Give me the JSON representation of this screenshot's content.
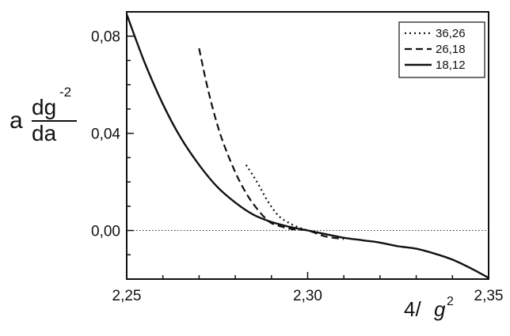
{
  "chart_data": {
    "type": "line",
    "title": "",
    "xlabel": "4/g^2",
    "xlabel_parts": {
      "lead": "4/",
      "var": "g",
      "exp": "2"
    },
    "ylabel_parts": {
      "prefix": "a",
      "numerator": "dg",
      "numerator_exp": "-2",
      "denominator": "da"
    },
    "xlim": [
      2.25,
      2.35
    ],
    "ylim": [
      -0.02,
      0.09
    ],
    "x_ticks": [
      {
        "value": 2.25,
        "label": "2,25"
      },
      {
        "value": 2.3,
        "label": "2,30"
      },
      {
        "value": 2.35,
        "label": "2,35"
      }
    ],
    "y_ticks": [
      {
        "value": 0.0,
        "label": "0,00"
      },
      {
        "value": 0.04,
        "label": "0,04"
      },
      {
        "value": 0.08,
        "label": "0,08"
      }
    ],
    "reference_line": {
      "y": 0.0,
      "style": "dotted"
    },
    "legend_position": "top-right",
    "grid": false,
    "series": [
      {
        "name": "36,26",
        "style": "dotted",
        "x": [
          2.283,
          2.286,
          2.289,
          2.292,
          2.295,
          2.298,
          2.3
        ],
        "y": [
          0.027,
          0.02,
          0.012,
          0.006,
          0.003,
          0.001,
          0.0
        ]
      },
      {
        "name": "26,18",
        "style": "dashed",
        "x": [
          2.27,
          2.272,
          2.274,
          2.276,
          2.278,
          2.28,
          2.282,
          2.284,
          2.286,
          2.288,
          2.29,
          2.293,
          2.296,
          2.3,
          2.305,
          2.31
        ],
        "y": [
          0.075,
          0.061,
          0.049,
          0.039,
          0.031,
          0.024,
          0.018,
          0.013,
          0.009,
          0.0055,
          0.003,
          0.0015,
          0.0005,
          0.0,
          -0.0025,
          -0.0035
        ]
      },
      {
        "name": "18,12",
        "style": "solid",
        "x": [
          2.25,
          2.255,
          2.26,
          2.265,
          2.27,
          2.275,
          2.28,
          2.285,
          2.29,
          2.295,
          2.3,
          2.305,
          2.31,
          2.315,
          2.32,
          2.325,
          2.33,
          2.335,
          2.34,
          2.345,
          2.35
        ],
        "y": [
          0.089,
          0.069,
          0.052,
          0.038,
          0.027,
          0.018,
          0.0115,
          0.0065,
          0.0035,
          0.0015,
          0.0,
          -0.0015,
          -0.003,
          -0.004,
          -0.005,
          -0.0065,
          -0.0075,
          -0.0095,
          -0.012,
          -0.0155,
          -0.0195
        ]
      }
    ]
  }
}
